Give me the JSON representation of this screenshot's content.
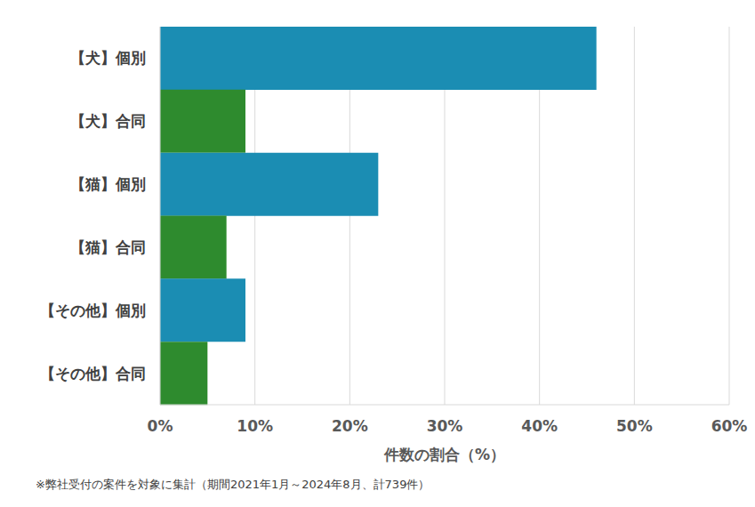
{
  "chart_data": {
    "type": "bar",
    "orientation": "horizontal",
    "categories": [
      "【犬】個別",
      "【犬】合同",
      "【猫】個別",
      "【猫】合同",
      "【その他】個別",
      "【その他】合同"
    ],
    "values": [
      46,
      9,
      23,
      7,
      9,
      5
    ],
    "colors": [
      "#1b8db3",
      "#2e8b2e",
      "#1b8db3",
      "#2e8b2e",
      "#1b8db3",
      "#2e8b2e"
    ],
    "xlabel": "件数の割合（%）",
    "xlim": [
      0,
      60
    ],
    "xticks": [
      {
        "value": 0,
        "label": "0%"
      },
      {
        "value": 10,
        "label": "10%"
      },
      {
        "value": 20,
        "label": "20%"
      },
      {
        "value": 30,
        "label": "30%"
      },
      {
        "value": 40,
        "label": "40%"
      },
      {
        "value": 50,
        "label": "50%"
      },
      {
        "value": 60,
        "label": "60%"
      }
    ],
    "grid": true,
    "annotation": "※弊社受付の案件を対象に集計（期間2021年1月～2024年8月、計739件）"
  }
}
